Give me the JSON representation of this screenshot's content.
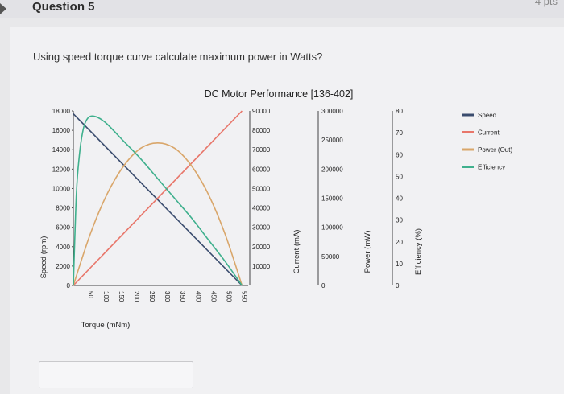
{
  "header": {
    "title": "Question 5",
    "points": "4 pts"
  },
  "question": {
    "text": "Using speed torque curve calculate maximum power in Watts?"
  },
  "answer": {
    "value": ""
  },
  "chart_data": {
    "type": "line",
    "title": "DC Motor Performance [136-402]",
    "xlabel": "Torque (mNm)",
    "x_ticks": [
      "50",
      "100",
      "150",
      "200",
      "250",
      "300",
      "350",
      "400",
      "450",
      "500",
      "550"
    ],
    "axes": {
      "speed": {
        "label": "Speed (rpm)",
        "ticks": [
          "0",
          "2000",
          "4000",
          "6000",
          "8000",
          "10000",
          "12000",
          "14000",
          "16000",
          "18000"
        ],
        "range": [
          0,
          18000
        ]
      },
      "current": {
        "label": "Current (mA)",
        "ticks": [
          "10000",
          "20000",
          "30000",
          "40000",
          "50000",
          "60000",
          "70000",
          "80000",
          "90000"
        ],
        "range": [
          0,
          90000
        ]
      },
      "power": {
        "label": "Power (mW)",
        "ticks": [
          "0",
          "50000",
          "100000",
          "150000",
          "200000",
          "250000",
          "300000"
        ],
        "range": [
          0,
          300000
        ]
      },
      "efficiency": {
        "label": "Efficiency (%)",
        "ticks": [
          "0",
          "10",
          "20",
          "30",
          "40",
          "50",
          "60",
          "70",
          "80"
        ],
        "range": [
          0,
          80
        ]
      }
    },
    "legend_position": "right",
    "series": [
      {
        "name": "Speed",
        "axis": "speed",
        "color": "#3a4c6e",
        "x": [
          0,
          550
        ],
        "y": [
          17700,
          0
        ]
      },
      {
        "name": "Current",
        "axis": "current",
        "color": "#e8766a",
        "x": [
          0,
          550
        ],
        "y": [
          0,
          90000
        ]
      },
      {
        "name": "Power (Out)",
        "axis": "power",
        "color": "#d9a66a",
        "x": [
          0,
          55,
          110,
          165,
          220,
          275,
          330,
          385,
          440,
          495,
          550
        ],
        "y": [
          0,
          88000,
          157000,
          206000,
          236000,
          245000,
          236000,
          206000,
          157000,
          88000,
          0
        ]
      },
      {
        "name": "Efficiency",
        "axis": "efficiency",
        "color": "#3fb08d",
        "x": [
          0,
          10,
          20,
          30,
          40,
          55,
          80,
          110,
          165,
          220,
          275,
          330,
          385,
          440,
          495,
          550
        ],
        "y": [
          0,
          42,
          60,
          70,
          75,
          77.5,
          77,
          74,
          66,
          58,
          49,
          40,
          31,
          21,
          11,
          0
        ]
      }
    ]
  }
}
